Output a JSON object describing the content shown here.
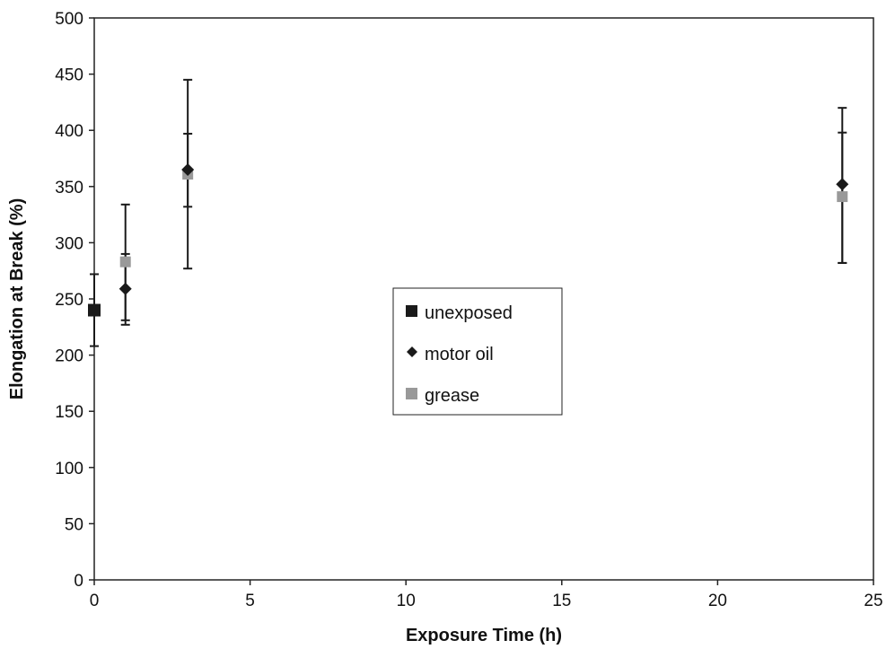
{
  "chart_data": {
    "type": "scatter",
    "title": "",
    "xlabel": "Exposure Time (h)",
    "ylabel": "Elongation at Break (%)",
    "xlim": [
      0,
      25
    ],
    "ylim": [
      0,
      500
    ],
    "xticks": [
      0,
      5,
      10,
      15,
      20,
      25
    ],
    "yticks": [
      0,
      50,
      100,
      150,
      200,
      250,
      300,
      350,
      400,
      450,
      500
    ],
    "grid": false,
    "legend_position": "center",
    "series": [
      {
        "name": "unexposed",
        "marker": "square",
        "color": "#1a1a1a",
        "points": [
          {
            "x": 0,
            "y": 240,
            "err_low": 208,
            "err_high": 272
          }
        ]
      },
      {
        "name": "motor oil",
        "marker": "diamond",
        "color": "#1a1a1a",
        "points": [
          {
            "x": 1,
            "y": 259,
            "err_low": 227,
            "err_high": 290
          },
          {
            "x": 3,
            "y": 365,
            "err_low": 332,
            "err_high": 397
          },
          {
            "x": 24,
            "y": 352,
            "err_low": 282,
            "err_high": 420
          }
        ]
      },
      {
        "name": "grease",
        "marker": "square",
        "color": "#999999",
        "points": [
          {
            "x": 1,
            "y": 283,
            "err_low": 231,
            "err_high": 334
          },
          {
            "x": 3,
            "y": 361,
            "err_low": 277,
            "err_high": 445
          },
          {
            "x": 24,
            "y": 341,
            "err_low": 282,
            "err_high": 398
          }
        ]
      }
    ]
  }
}
